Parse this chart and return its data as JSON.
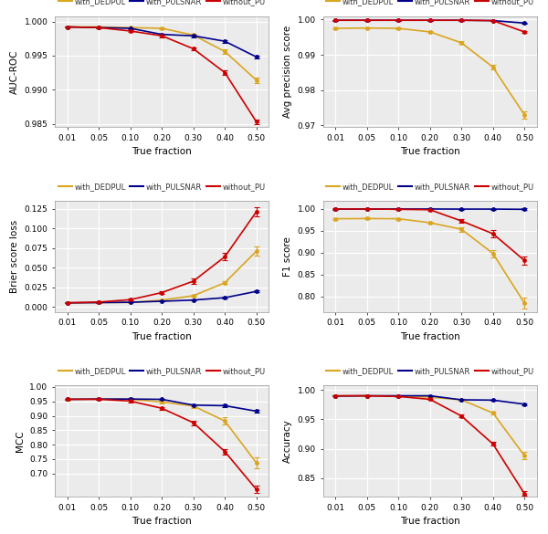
{
  "x_vals": [
    0,
    1,
    2,
    3,
    4,
    5,
    6
  ],
  "x_ticks_pos": [
    0,
    1,
    2,
    3,
    4,
    5,
    6
  ],
  "x_tick_labels": [
    "0.01",
    "0.05",
    "0.10",
    "0.20",
    "0.30",
    "0.40",
    "0.50"
  ],
  "auc_roc": {
    "with_DEDPUL": [
      0.9992,
      0.9992,
      0.9991,
      0.999,
      0.998,
      0.9956,
      0.9914
    ],
    "with_PULSNAR": [
      0.9992,
      0.9991,
      0.999,
      0.9981,
      0.9979,
      0.9971,
      0.9948
    ],
    "without_PU": [
      0.9992,
      0.9991,
      0.9986,
      0.9979,
      0.996,
      0.9925,
      0.9853
    ]
  },
  "auc_roc_err": {
    "with_DEDPUL": [
      0.0001,
      0.0001,
      0.0001,
      0.0002,
      0.0002,
      0.0003,
      0.0004
    ],
    "with_PULSNAR": [
      0.0001,
      0.0001,
      0.0001,
      0.0001,
      0.0002,
      0.0002,
      0.0002
    ],
    "without_PU": [
      0.0001,
      0.0001,
      0.0001,
      0.0002,
      0.0002,
      0.0003,
      0.0003
    ]
  },
  "avg_precision": {
    "with_DEDPUL": [
      0.9975,
      0.9976,
      0.9975,
      0.9965,
      0.9934,
      0.9865,
      0.973
    ],
    "with_PULSNAR": [
      0.9998,
      0.9998,
      0.9998,
      0.9998,
      0.9998,
      0.9997,
      0.999
    ],
    "without_PU": [
      0.9998,
      0.9998,
      0.9998,
      0.9998,
      0.9998,
      0.9997,
      0.9965
    ]
  },
  "avg_precision_err": {
    "with_DEDPUL": [
      0.0002,
      0.0002,
      0.0002,
      0.0003,
      0.0004,
      0.0007,
      0.001
    ],
    "with_PULSNAR": [
      0.0001,
      0.0001,
      0.0001,
      0.0001,
      0.0001,
      0.0001,
      0.0002
    ],
    "without_PU": [
      0.0001,
      0.0001,
      0.0001,
      0.0001,
      0.0001,
      0.0001,
      0.0003
    ]
  },
  "brier": {
    "with_DEDPUL": [
      0.0055,
      0.0058,
      0.006,
      0.009,
      0.0145,
      0.031,
      0.071
    ],
    "with_PULSNAR": [
      0.0055,
      0.0058,
      0.0062,
      0.0075,
      0.009,
      0.012,
      0.02
    ],
    "without_PU": [
      0.0055,
      0.0065,
      0.0095,
      0.0185,
      0.033,
      0.064,
      0.121
    ]
  },
  "brier_err": {
    "with_DEDPUL": [
      0.0003,
      0.0003,
      0.0004,
      0.0008,
      0.0012,
      0.002,
      0.0055
    ],
    "with_PULSNAR": [
      0.0003,
      0.0003,
      0.0003,
      0.0004,
      0.0004,
      0.0008,
      0.0012
    ],
    "without_PU": [
      0.0003,
      0.0008,
      0.0012,
      0.002,
      0.003,
      0.0045,
      0.0055
    ]
  },
  "f1": {
    "with_DEDPUL": [
      0.977,
      0.9775,
      0.977,
      0.968,
      0.953,
      0.898,
      0.785
    ],
    "with_PULSNAR": [
      0.999,
      0.9992,
      0.9992,
      0.9992,
      0.999,
      0.999,
      0.9985
    ],
    "without_PU": [
      0.9992,
      0.9992,
      0.9985,
      0.9975,
      0.972,
      0.943,
      0.882
    ]
  },
  "f1_err": {
    "with_DEDPUL": [
      0.002,
      0.002,
      0.002,
      0.003,
      0.005,
      0.008,
      0.012
    ],
    "with_PULSNAR": [
      0.001,
      0.001,
      0.001,
      0.001,
      0.001,
      0.001,
      0.002
    ],
    "without_PU": [
      0.001,
      0.001,
      0.001,
      0.002,
      0.005,
      0.008,
      0.01
    ]
  },
  "mcc": {
    "with_DEDPUL": [
      0.957,
      0.958,
      0.957,
      0.948,
      0.934,
      0.882,
      0.737
    ],
    "with_PULSNAR": [
      0.957,
      0.958,
      0.958,
      0.957,
      0.937,
      0.935,
      0.916
    ],
    "without_PU": [
      0.957,
      0.957,
      0.951,
      0.926,
      0.876,
      0.776,
      0.645
    ]
  },
  "mcc_err": {
    "with_DEDPUL": [
      0.004,
      0.004,
      0.004,
      0.005,
      0.007,
      0.012,
      0.02
    ],
    "with_PULSNAR": [
      0.003,
      0.003,
      0.003,
      0.003,
      0.004,
      0.005,
      0.006
    ],
    "without_PU": [
      0.003,
      0.003,
      0.004,
      0.005,
      0.008,
      0.01,
      0.012
    ]
  },
  "accuracy": {
    "with_DEDPUL": [
      0.99,
      0.9903,
      0.99,
      0.988,
      0.9835,
      0.961,
      0.888
    ],
    "with_PULSNAR": [
      0.99,
      0.9904,
      0.9904,
      0.9904,
      0.9835,
      0.983,
      0.976
    ],
    "without_PU": [
      0.9904,
      0.9904,
      0.9892,
      0.9843,
      0.9558,
      0.908,
      0.823
    ]
  },
  "accuracy_err": {
    "with_DEDPUL": [
      0.0008,
      0.0008,
      0.0008,
      0.001,
      0.0015,
      0.0025,
      0.006
    ],
    "with_PULSNAR": [
      0.0006,
      0.0006,
      0.0006,
      0.0006,
      0.001,
      0.001,
      0.0012
    ],
    "without_PU": [
      0.0006,
      0.0006,
      0.0008,
      0.0012,
      0.002,
      0.003,
      0.004
    ]
  },
  "colors": {
    "with_DEDPUL": "#DAA520",
    "with_PULSNAR": "#00008B",
    "without_PU": "#CC0000"
  },
  "xlabel": "True fraction",
  "bg_color": "#EBEBEB",
  "grid_color": "white",
  "ylims": {
    "auc_roc": [
      0.9845,
      1.0008
    ],
    "avg_precision": [
      0.9695,
      1.001
    ],
    "brier": [
      -0.006,
      0.135
    ],
    "f1": [
      0.765,
      1.018
    ],
    "mcc": [
      0.62,
      1.005
    ],
    "accuracy": [
      0.818,
      1.008
    ]
  },
  "yticks": {
    "auc_roc": [
      0.985,
      0.99,
      0.995,
      1.0
    ],
    "avg_precision": [
      0.97,
      0.98,
      0.99,
      1.0
    ],
    "brier": [
      0.0,
      0.025,
      0.05,
      0.075,
      0.1,
      0.125
    ],
    "f1": [
      0.8,
      0.85,
      0.9,
      0.95,
      1.0
    ],
    "mcc": [
      0.7,
      0.75,
      0.8,
      0.85,
      0.9,
      0.95,
      1.0
    ],
    "accuracy": [
      0.85,
      0.9,
      0.95,
      1.0
    ]
  },
  "ytick_labels": {
    "auc_roc": [
      "0.985",
      "0.990",
      "0.995",
      "1.000"
    ],
    "avg_precision": [
      "0.97",
      "0.98",
      "0.99",
      "1.00"
    ],
    "brier": [
      "0.000",
      "0.025",
      "0.050",
      "0.075",
      "0.100",
      "0.125"
    ],
    "f1": [
      "0.80",
      "0.85",
      "0.90",
      "0.95",
      "1.00"
    ],
    "mcc": [
      "0.70",
      "0.75",
      "0.80",
      "0.85",
      "0.90",
      "0.95",
      "1.00"
    ],
    "accuracy": [
      "0.85",
      "0.90",
      "0.95",
      "1.00"
    ]
  }
}
